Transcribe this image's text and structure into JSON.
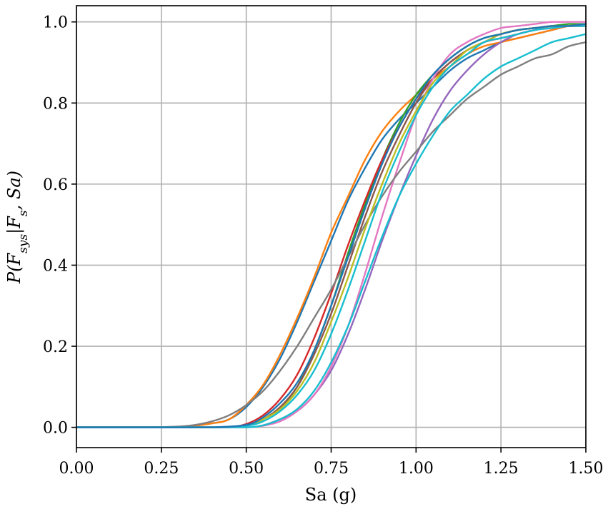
{
  "chart_data": {
    "type": "line",
    "title": "",
    "xlabel": "Sa (g)",
    "ylabel": "P(F_sys|F_s, Sa)",
    "ylabel_parts": {
      "lead": "P(F",
      "sub1": "sys",
      "mid": "|F",
      "sub2": "s",
      "tail": ", Sa)"
    },
    "xlim": [
      0.0,
      1.5
    ],
    "ylim": [
      -0.05,
      1.04
    ],
    "grid": true,
    "legend": "none",
    "x_ticks": [
      {
        "value": 0.0,
        "label": "0.00"
      },
      {
        "value": 0.25,
        "label": "0.25"
      },
      {
        "value": 0.5,
        "label": "0.50"
      },
      {
        "value": 0.75,
        "label": "0.75"
      },
      {
        "value": 1.0,
        "label": "1.00"
      },
      {
        "value": 1.25,
        "label": "1.25"
      },
      {
        "value": 1.5,
        "label": "1.50"
      }
    ],
    "y_ticks": [
      {
        "value": 0.0,
        "label": "0.0"
      },
      {
        "value": 0.2,
        "label": "0.2"
      },
      {
        "value": 0.4,
        "label": "0.4"
      },
      {
        "value": 0.6,
        "label": "0.6"
      },
      {
        "value": 0.8,
        "label": "0.8"
      },
      {
        "value": 1.0,
        "label": "1.0"
      }
    ],
    "series": [
      {
        "color": "#1f77b4",
        "x": [
          0.0,
          0.1,
          0.2,
          0.3,
          0.4,
          0.45,
          0.5,
          0.55,
          0.6,
          0.65,
          0.7,
          0.75,
          0.8,
          0.85,
          0.9,
          0.95,
          1.0,
          1.05,
          1.1,
          1.15,
          1.2,
          1.25,
          1.3,
          1.35,
          1.4,
          1.45,
          1.5
        ],
        "values": [
          0.0,
          0.0,
          0.0,
          0.0,
          0.01,
          0.02,
          0.05,
          0.1,
          0.17,
          0.26,
          0.36,
          0.46,
          0.56,
          0.64,
          0.71,
          0.76,
          0.8,
          0.84,
          0.88,
          0.91,
          0.93,
          0.95,
          0.96,
          0.97,
          0.98,
          0.99,
          0.99
        ]
      },
      {
        "color": "#ff7f0e",
        "x": [
          0.0,
          0.1,
          0.2,
          0.3,
          0.4,
          0.45,
          0.5,
          0.55,
          0.6,
          0.65,
          0.7,
          0.75,
          0.8,
          0.85,
          0.9,
          0.95,
          1.0,
          1.05,
          1.1,
          1.15,
          1.2,
          1.25,
          1.3,
          1.35,
          1.4,
          1.45,
          1.5
        ],
        "values": [
          0.0,
          0.0,
          0.0,
          0.0,
          0.01,
          0.02,
          0.055,
          0.105,
          0.18,
          0.27,
          0.37,
          0.48,
          0.57,
          0.66,
          0.73,
          0.78,
          0.82,
          0.86,
          0.89,
          0.92,
          0.94,
          0.95,
          0.96,
          0.97,
          0.98,
          0.99,
          0.99
        ]
      },
      {
        "color": "#2ca02c",
        "x": [
          0.0,
          0.3,
          0.4,
          0.45,
          0.5,
          0.55,
          0.6,
          0.65,
          0.7,
          0.75,
          0.8,
          0.85,
          0.9,
          0.95,
          1.0,
          1.05,
          1.1,
          1.15,
          1.2,
          1.25,
          1.3,
          1.35,
          1.4,
          1.45,
          1.5
        ],
        "values": [
          0.0,
          0.0,
          0.0,
          0.0,
          0.005,
          0.02,
          0.05,
          0.1,
          0.19,
          0.3,
          0.43,
          0.55,
          0.66,
          0.75,
          0.82,
          0.87,
          0.91,
          0.94,
          0.96,
          0.97,
          0.98,
          0.985,
          0.99,
          0.995,
          0.995
        ]
      },
      {
        "color": "#d62728",
        "x": [
          0.0,
          0.3,
          0.4,
          0.45,
          0.5,
          0.55,
          0.6,
          0.65,
          0.7,
          0.75,
          0.8,
          0.85,
          0.9,
          0.95,
          1.0,
          1.05,
          1.1,
          1.15,
          1.2,
          1.25,
          1.3,
          1.35,
          1.4,
          1.45,
          1.5
        ],
        "values": [
          0.0,
          0.0,
          0.0,
          0.0,
          0.008,
          0.03,
          0.07,
          0.13,
          0.22,
          0.33,
          0.45,
          0.56,
          0.66,
          0.74,
          0.81,
          0.86,
          0.9,
          0.93,
          0.95,
          0.96,
          0.97,
          0.98,
          0.985,
          0.99,
          0.99
        ]
      },
      {
        "color": "#9467bd",
        "x": [
          0.0,
          0.3,
          0.4,
          0.5,
          0.55,
          0.6,
          0.65,
          0.7,
          0.75,
          0.8,
          0.85,
          0.9,
          0.95,
          1.0,
          1.05,
          1.1,
          1.15,
          1.2,
          1.25,
          1.3,
          1.35,
          1.4,
          1.45,
          1.5
        ],
        "values": [
          0.0,
          0.0,
          0.0,
          0.0,
          0.005,
          0.02,
          0.04,
          0.08,
          0.14,
          0.23,
          0.34,
          0.46,
          0.57,
          0.67,
          0.76,
          0.83,
          0.88,
          0.92,
          0.95,
          0.97,
          0.98,
          0.985,
          0.99,
          0.995
        ]
      },
      {
        "color": "#8c564b",
        "x": [
          0.0,
          0.3,
          0.4,
          0.5,
          0.55,
          0.6,
          0.65,
          0.7,
          0.75,
          0.8,
          0.85,
          0.9,
          0.95,
          1.0,
          1.05,
          1.1,
          1.15,
          1.2,
          1.25,
          1.3,
          1.35,
          1.4,
          1.45,
          1.5
        ],
        "values": [
          0.0,
          0.0,
          0.0,
          0.004,
          0.02,
          0.05,
          0.1,
          0.18,
          0.28,
          0.4,
          0.52,
          0.63,
          0.72,
          0.8,
          0.86,
          0.9,
          0.93,
          0.95,
          0.97,
          0.98,
          0.985,
          0.99,
          0.99,
          0.995
        ]
      },
      {
        "color": "#e377c2",
        "x": [
          0.0,
          0.3,
          0.4,
          0.5,
          0.55,
          0.6,
          0.65,
          0.7,
          0.75,
          0.8,
          0.85,
          0.9,
          0.95,
          1.0,
          1.05,
          1.1,
          1.15,
          1.2,
          1.25,
          1.3,
          1.35,
          1.4,
          1.45,
          1.5
        ],
        "values": [
          0.0,
          0.0,
          0.0,
          0.0,
          0.004,
          0.015,
          0.04,
          0.08,
          0.15,
          0.25,
          0.38,
          0.52,
          0.65,
          0.77,
          0.86,
          0.92,
          0.95,
          0.97,
          0.985,
          0.99,
          0.995,
          1.0,
          1.0,
          1.0
        ]
      },
      {
        "color": "#7f7f7f",
        "x": [
          0.0,
          0.2,
          0.3,
          0.35,
          0.4,
          0.45,
          0.5,
          0.55,
          0.6,
          0.65,
          0.7,
          0.75,
          0.8,
          0.85,
          0.9,
          0.95,
          1.0,
          1.05,
          1.1,
          1.15,
          1.2,
          1.25,
          1.3,
          1.35,
          1.4,
          1.45,
          1.5
        ],
        "values": [
          0.0,
          0.0,
          0.002,
          0.006,
          0.015,
          0.03,
          0.055,
          0.09,
          0.14,
          0.2,
          0.27,
          0.34,
          0.42,
          0.5,
          0.57,
          0.63,
          0.68,
          0.73,
          0.77,
          0.81,
          0.84,
          0.87,
          0.89,
          0.91,
          0.92,
          0.94,
          0.95
        ]
      },
      {
        "color": "#bcbd22",
        "x": [
          0.0,
          0.3,
          0.4,
          0.5,
          0.55,
          0.6,
          0.65,
          0.7,
          0.75,
          0.8,
          0.85,
          0.9,
          0.95,
          1.0,
          1.05,
          1.1,
          1.15,
          1.2,
          1.25,
          1.3,
          1.35,
          1.4,
          1.45,
          1.5
        ],
        "values": [
          0.0,
          0.0,
          0.0,
          0.005,
          0.02,
          0.045,
          0.09,
          0.16,
          0.26,
          0.37,
          0.49,
          0.6,
          0.7,
          0.78,
          0.85,
          0.89,
          0.93,
          0.95,
          0.97,
          0.98,
          0.985,
          0.99,
          0.99,
          0.995
        ]
      },
      {
        "color": "#17becf",
        "x": [
          0.0,
          0.3,
          0.4,
          0.5,
          0.55,
          0.6,
          0.65,
          0.7,
          0.75,
          0.8,
          0.85,
          0.9,
          0.95,
          1.0,
          1.05,
          1.1,
          1.15,
          1.2,
          1.25,
          1.3,
          1.35,
          1.4,
          1.45,
          1.5
        ],
        "values": [
          0.0,
          0.0,
          0.0,
          0.0,
          0.005,
          0.02,
          0.045,
          0.09,
          0.16,
          0.25,
          0.36,
          0.47,
          0.57,
          0.65,
          0.72,
          0.78,
          0.82,
          0.86,
          0.89,
          0.91,
          0.93,
          0.95,
          0.96,
          0.97
        ]
      },
      {
        "color": "#17becf",
        "x": [
          0.0,
          0.3,
          0.4,
          0.5,
          0.55,
          0.6,
          0.65,
          0.7,
          0.75,
          0.8,
          0.85,
          0.9,
          0.95,
          1.0,
          1.05,
          1.1,
          1.15,
          1.2,
          1.25,
          1.3,
          1.35,
          1.4,
          1.45,
          1.5
        ],
        "values": [
          0.0,
          0.0,
          0.0,
          0.004,
          0.015,
          0.04,
          0.08,
          0.14,
          0.23,
          0.34,
          0.46,
          0.58,
          0.68,
          0.77,
          0.84,
          0.89,
          0.92,
          0.95,
          0.96,
          0.97,
          0.98,
          0.985,
          0.99,
          0.99
        ]
      },
      {
        "color": "#1f77b4",
        "x": [
          0.0,
          0.3,
          0.4,
          0.5,
          0.55,
          0.6,
          0.65,
          0.7,
          0.75,
          0.8,
          0.85,
          0.9,
          0.95,
          1.0,
          1.05,
          1.1,
          1.15,
          1.2,
          1.25,
          1.3,
          1.35,
          1.4,
          1.45,
          1.5
        ],
        "values": [
          0.0,
          0.0,
          0.0,
          0.006,
          0.025,
          0.06,
          0.11,
          0.19,
          0.3,
          0.42,
          0.54,
          0.65,
          0.74,
          0.81,
          0.87,
          0.91,
          0.94,
          0.96,
          0.97,
          0.98,
          0.985,
          0.99,
          0.99,
          0.995
        ]
      }
    ]
  }
}
